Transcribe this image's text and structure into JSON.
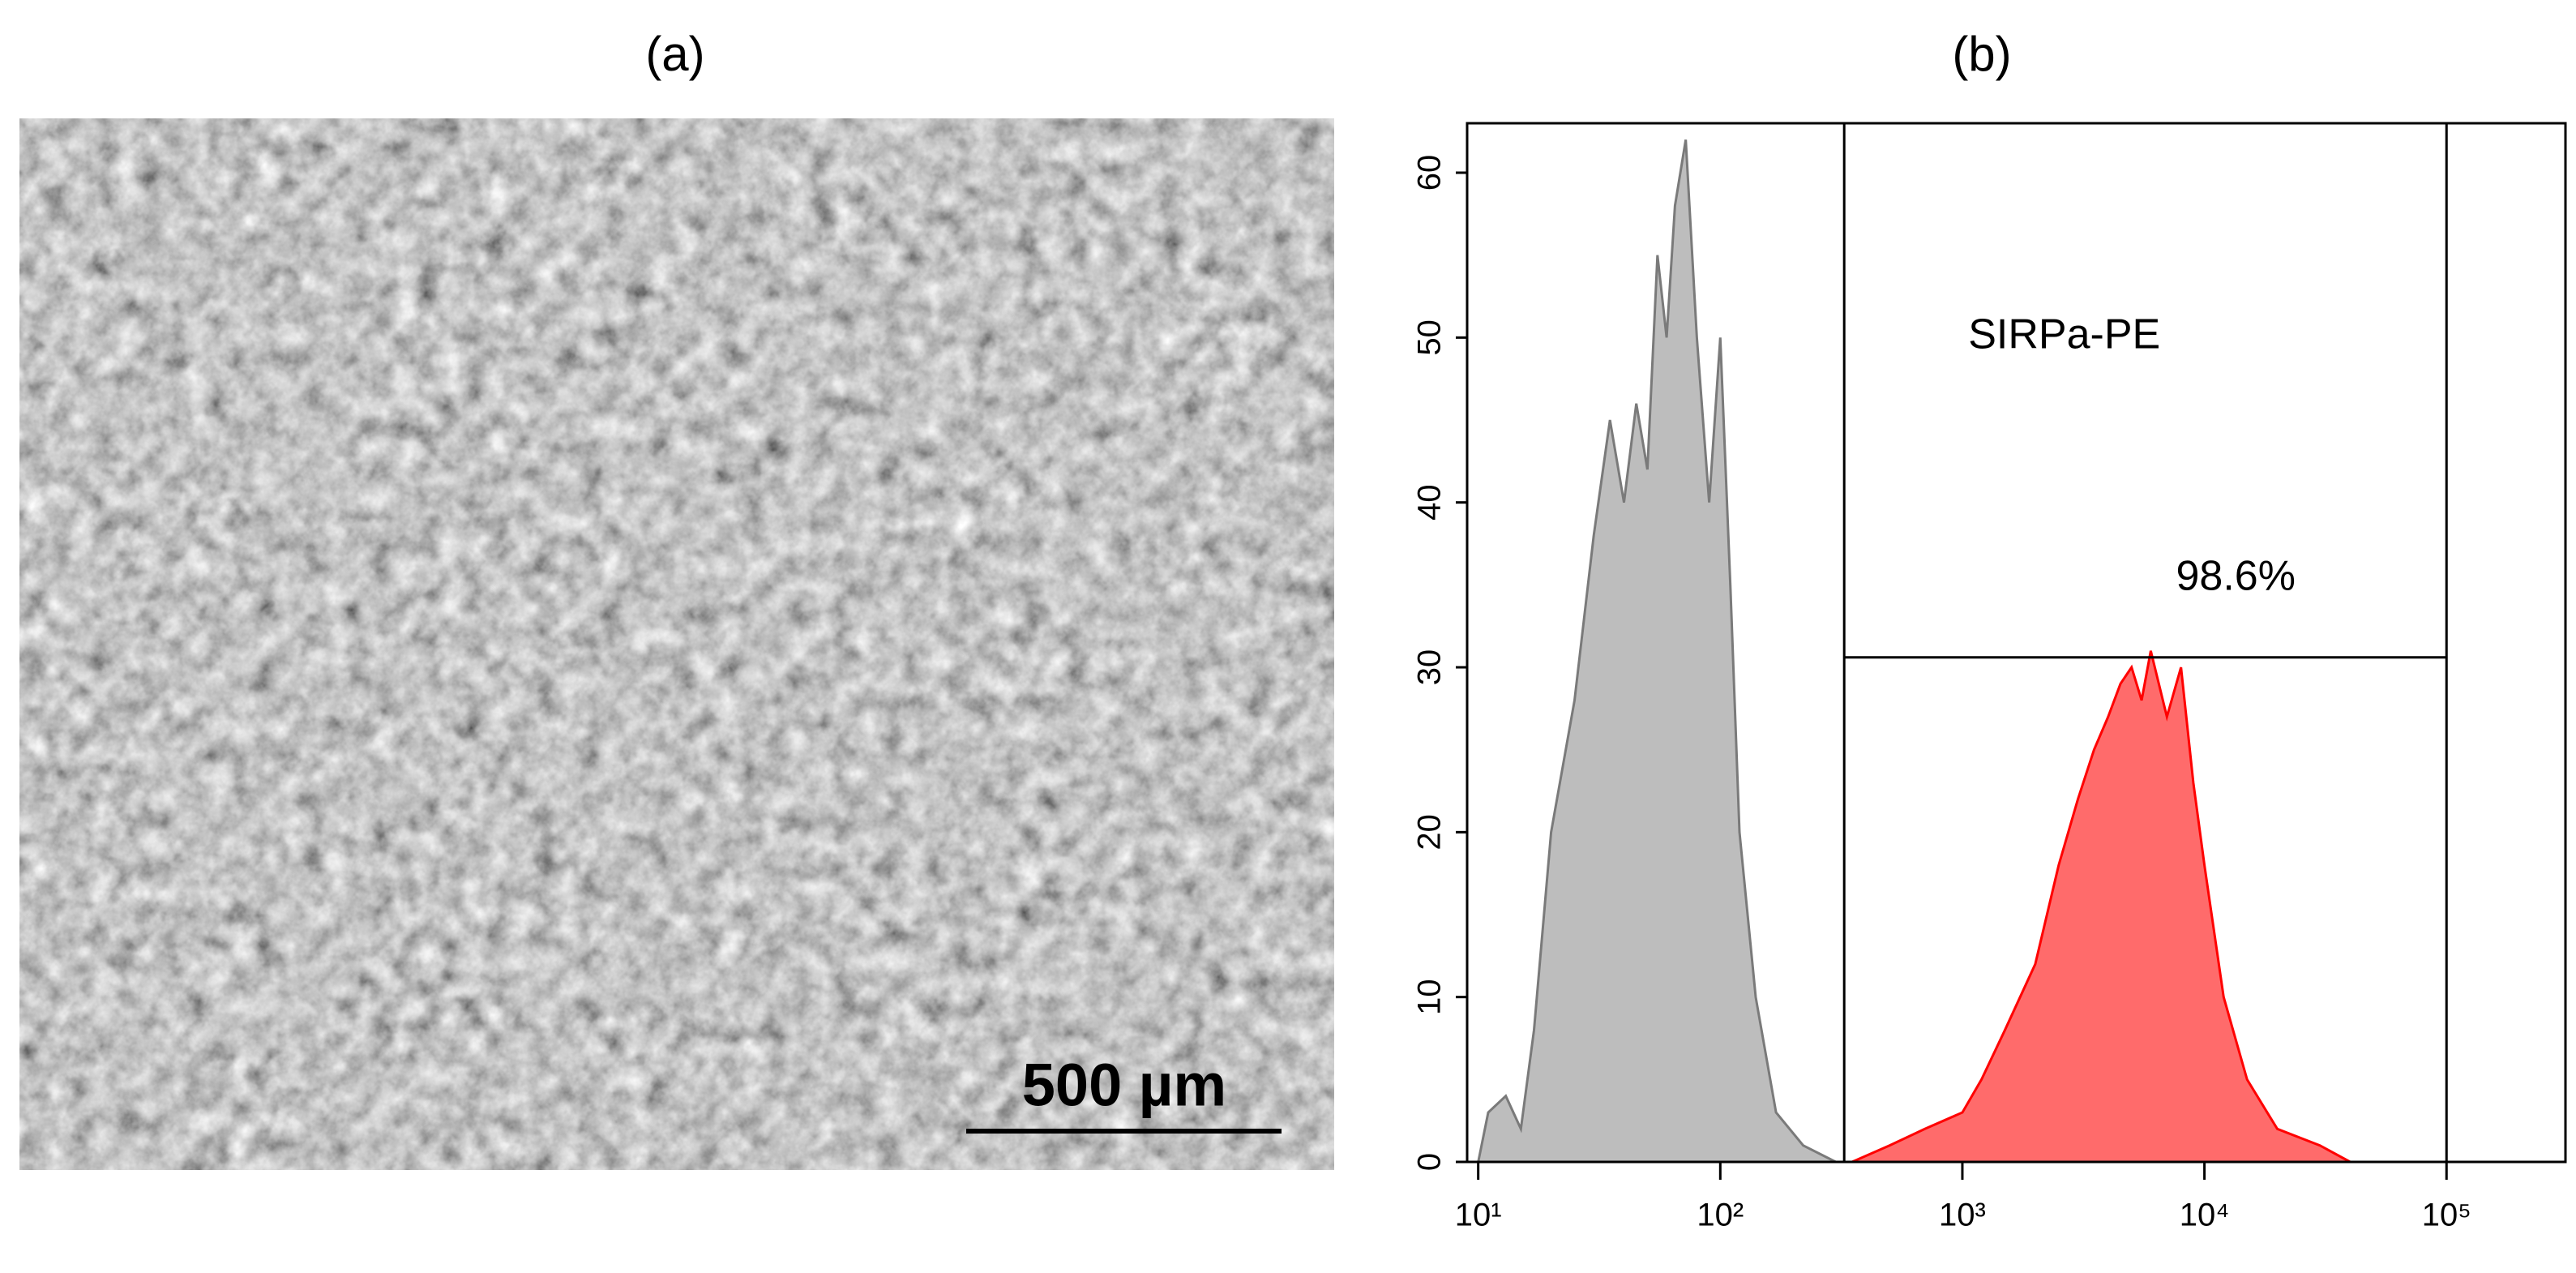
{
  "panel_a": {
    "label": "(a)",
    "scale_bar": "500 µm"
  },
  "chart_data": {
    "type": "area",
    "title": "(b)",
    "log_x": true,
    "xlim": [
      9,
      310000
    ],
    "ylim": [
      0,
      63
    ],
    "xticks": [
      {
        "value": 10,
        "label": "10¹"
      },
      {
        "value": 100,
        "label": "10²"
      },
      {
        "value": 1000,
        "label": "10³"
      },
      {
        "value": 10000,
        "label": "10⁴"
      },
      {
        "value": 100000,
        "label": "10⁵"
      }
    ],
    "yticks": [
      0,
      10,
      20,
      30,
      40,
      50,
      60
    ],
    "series": [
      {
        "color": "#bdbdbd",
        "stroke": "#7a7a7a",
        "x": [
          10,
          11,
          13,
          15,
          17,
          20,
          25,
          30,
          35,
          40,
          45,
          50,
          55,
          60,
          65,
          72,
          80,
          90,
          100,
          110,
          120,
          140,
          170,
          220,
          300
        ],
        "values": [
          0,
          3,
          4,
          2,
          8,
          20,
          28,
          38,
          45,
          40,
          46,
          42,
          55,
          50,
          58,
          62,
          50,
          40,
          50,
          35,
          20,
          10,
          3,
          1,
          0
        ]
      },
      {
        "color": "#ff6b6b",
        "stroke": "#ff0000",
        "x": [
          350,
          500,
          700,
          1000,
          1200,
          1500,
          2000,
          2500,
          3000,
          3500,
          4000,
          4500,
          5000,
          5500,
          6000,
          7000,
          8000,
          9000,
          10000,
          12000,
          15000,
          20000,
          30000,
          40000
        ],
        "values": [
          0,
          1,
          2,
          3,
          5,
          8,
          12,
          18,
          22,
          25,
          27,
          29,
          30,
          28,
          31,
          27,
          30,
          23,
          18,
          10,
          5,
          2,
          1,
          0
        ]
      }
    ],
    "gate": {
      "x": [
        325,
        100000
      ],
      "y": 30.6,
      "label": "SIRPa-PE",
      "percent": "98.6%"
    }
  }
}
